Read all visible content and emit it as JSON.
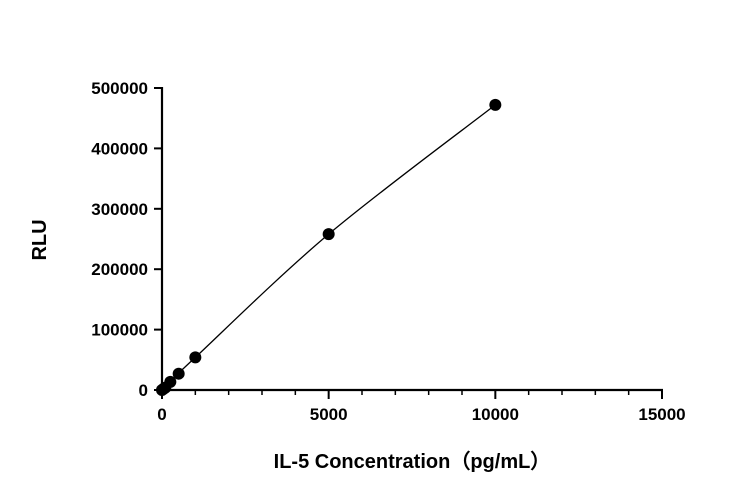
{
  "chart_data": {
    "type": "scatter",
    "title": "",
    "xlabel": "IL-5 Concentration（pg/mL）",
    "ylabel": "RLU",
    "xlim": [
      0,
      15000
    ],
    "ylim": [
      0,
      500000
    ],
    "x_ticks": [
      0,
      5000,
      10000,
      15000
    ],
    "x_tick_labels": [
      "0",
      "5000",
      "10000",
      "15000"
    ],
    "y_ticks": [
      0,
      100000,
      200000,
      300000,
      400000,
      500000
    ],
    "y_tick_labels": [
      "0",
      "100000",
      "200000",
      "300000",
      "400000",
      "500000"
    ],
    "x_minor_per_major": 5,
    "grid": false,
    "legend": "none",
    "series": [
      {
        "x": [
          0,
          50,
          100,
          250,
          500,
          1000,
          5000,
          10000
        ],
        "y": [
          0,
          2000,
          4000,
          13500,
          27000,
          54000,
          258000,
          472000
        ],
        "fit": "curve"
      }
    ]
  }
}
